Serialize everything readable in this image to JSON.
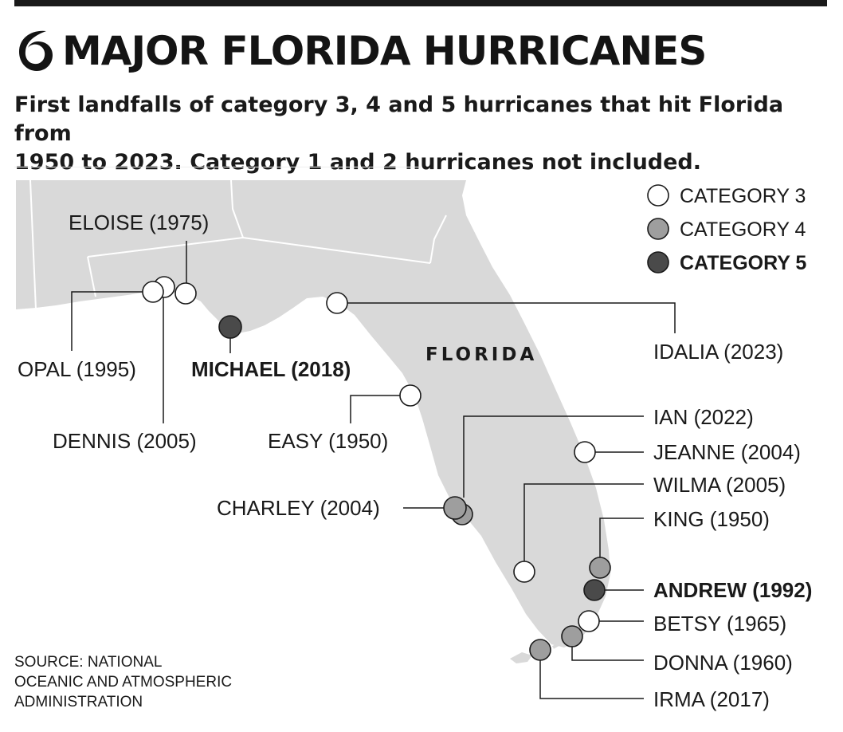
{
  "header": {
    "title": "MAJOR FLORIDA HURRICANES",
    "subtitle_line1": "First landfalls of category 3, 4 and 5 hurricanes that hit Florida from",
    "subtitle_line2": "1950 to 2023. Category 1 and 2 hurricanes not included.",
    "icon": "hurricane-icon"
  },
  "colors": {
    "land": "#d9d9d9",
    "category_3": "#ffffff",
    "category_4": "#9e9e9e",
    "category_5": "#4a4a4a",
    "text": "#1a1a1a"
  },
  "legend": {
    "items": [
      {
        "label": "CATEGORY 3",
        "category": 3
      },
      {
        "label": "CATEGORY 4",
        "category": 4
      },
      {
        "label": "CATEGORY 5",
        "category": 5
      }
    ]
  },
  "map": {
    "state_label": "FLORIDA"
  },
  "hurricanes": [
    {
      "name": "ELOISE (1975)",
      "category": 3
    },
    {
      "name": "OPAL (1995)",
      "category": 3
    },
    {
      "name": "DENNIS (2005)",
      "category": 3
    },
    {
      "name": "MICHAEL (2018)",
      "category": 5
    },
    {
      "name": "IDALIA (2023)",
      "category": 3
    },
    {
      "name": "EASY (1950)",
      "category": 3
    },
    {
      "name": "IAN (2022)",
      "category": 4
    },
    {
      "name": "JEANNE (2004)",
      "category": 3
    },
    {
      "name": "WILMA (2005)",
      "category": 3
    },
    {
      "name": "CHARLEY (2004)",
      "category": 4
    },
    {
      "name": "KING (1950)",
      "category": 4
    },
    {
      "name": "ANDREW (1992)",
      "category": 5
    },
    {
      "name": "BETSY (1965)",
      "category": 3
    },
    {
      "name": "DONNA (1960)",
      "category": 4
    },
    {
      "name": "IRMA (2017)",
      "category": 4
    }
  ],
  "source": {
    "line1": "SOURCE: NATIONAL",
    "line2": "OCEANIC AND ATMOSPHERIC",
    "line3": "ADMINISTRATION"
  }
}
